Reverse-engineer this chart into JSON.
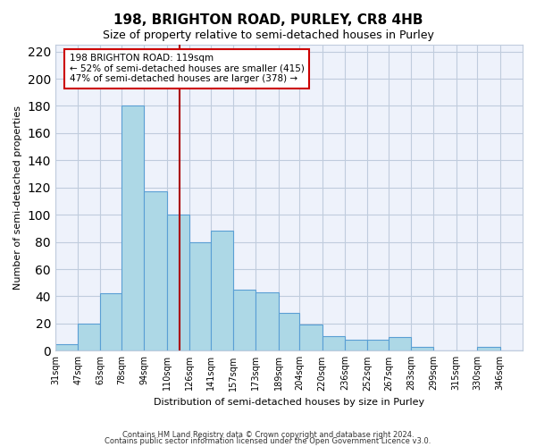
{
  "title": "198, BRIGHTON ROAD, PURLEY, CR8 4HB",
  "subtitle": "Size of property relative to semi-detached houses in Purley",
  "xlabel": "Distribution of semi-detached houses by size in Purley",
  "ylabel": "Number of semi-detached properties",
  "bar_labels": [
    "31sqm",
    "47sqm",
    "63sqm",
    "78sqm",
    "94sqm",
    "110sqm",
    "126sqm",
    "141sqm",
    "157sqm",
    "173sqm",
    "189sqm",
    "204sqm",
    "220sqm",
    "236sqm",
    "252sqm",
    "267sqm",
    "283sqm",
    "299sqm",
    "315sqm",
    "330sqm",
    "346sqm"
  ],
  "bar_heights": [
    5,
    20,
    42,
    180,
    117,
    100,
    80,
    88,
    45,
    43,
    28,
    19,
    11,
    8,
    8,
    10,
    3,
    0,
    0,
    3,
    0
  ],
  "bar_color": "#add8e6",
  "bar_edge_color": "#5a9fd4",
  "background_color": "#eef2fb",
  "grid_color": "#c0ccdd",
  "property_line_x": 119,
  "property_label": "198 BRIGHTON ROAD: 119sqm",
  "annotation_line1": "← 52% of semi-detached houses are smaller (415)",
  "annotation_line2": "47% of semi-detached houses are larger (378) →",
  "annotation_box_edge": "#cc0000",
  "vline_color": "#aa0000",
  "ylim": [
    0,
    225
  ],
  "yticks": [
    0,
    20,
    40,
    60,
    80,
    100,
    120,
    140,
    160,
    180,
    200,
    220
  ],
  "footer1": "Contains HM Land Registry data © Crown copyright and database right 2024.",
  "footer2": "Contains public sector information licensed under the Open Government Licence v3.0.",
  "bin_edges": [
    31,
    47,
    63,
    78,
    94,
    110,
    126,
    141,
    157,
    173,
    189,
    204,
    220,
    236,
    252,
    267,
    283,
    299,
    315,
    330,
    346,
    362
  ]
}
